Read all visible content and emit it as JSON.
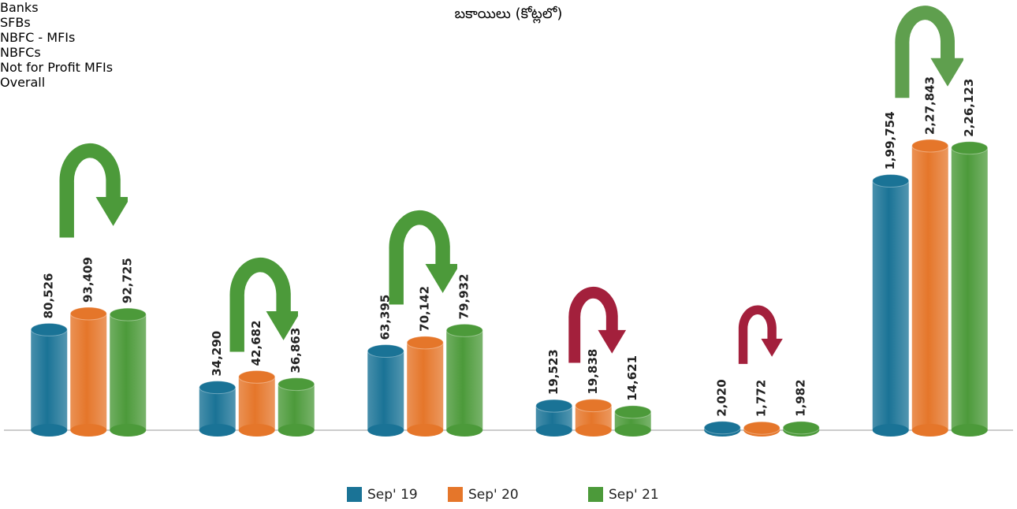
{
  "chart_data": {
    "type": "bar",
    "title": "బకాయిలు (కోట్లలో)",
    "categories": [
      "Banks",
      "SFBs",
      "NBFC - MFIs",
      "NBFCs",
      "Not for Profit MFIs",
      "Overall"
    ],
    "series": [
      {
        "name": "Sep' 19",
        "color": "#1a7396",
        "values": [
          80526,
          34290,
          63395,
          19523,
          2020,
          199754
        ],
        "value_labels": [
          "80,526",
          "34,290",
          "63,395",
          "19,523",
          "2,020",
          "1,99,754"
        ]
      },
      {
        "name": "Sep' 20",
        "color": "#e5762a",
        "values": [
          93409,
          42682,
          70142,
          19838,
          1772,
          227843
        ],
        "value_labels": [
          "93,409",
          "42,682",
          "70,142",
          "19,838",
          "1,772",
          "2,27,843"
        ]
      },
      {
        "name": "Sep' 21",
        "color": "#4c9a3a",
        "values": [
          92725,
          36863,
          79932,
          14621,
          1982,
          226123
        ],
        "value_labels": [
          "92,725",
          "36,863",
          "79,932",
          "14,621",
          "1,982",
          "2,26,123"
        ]
      }
    ]
  }
}
